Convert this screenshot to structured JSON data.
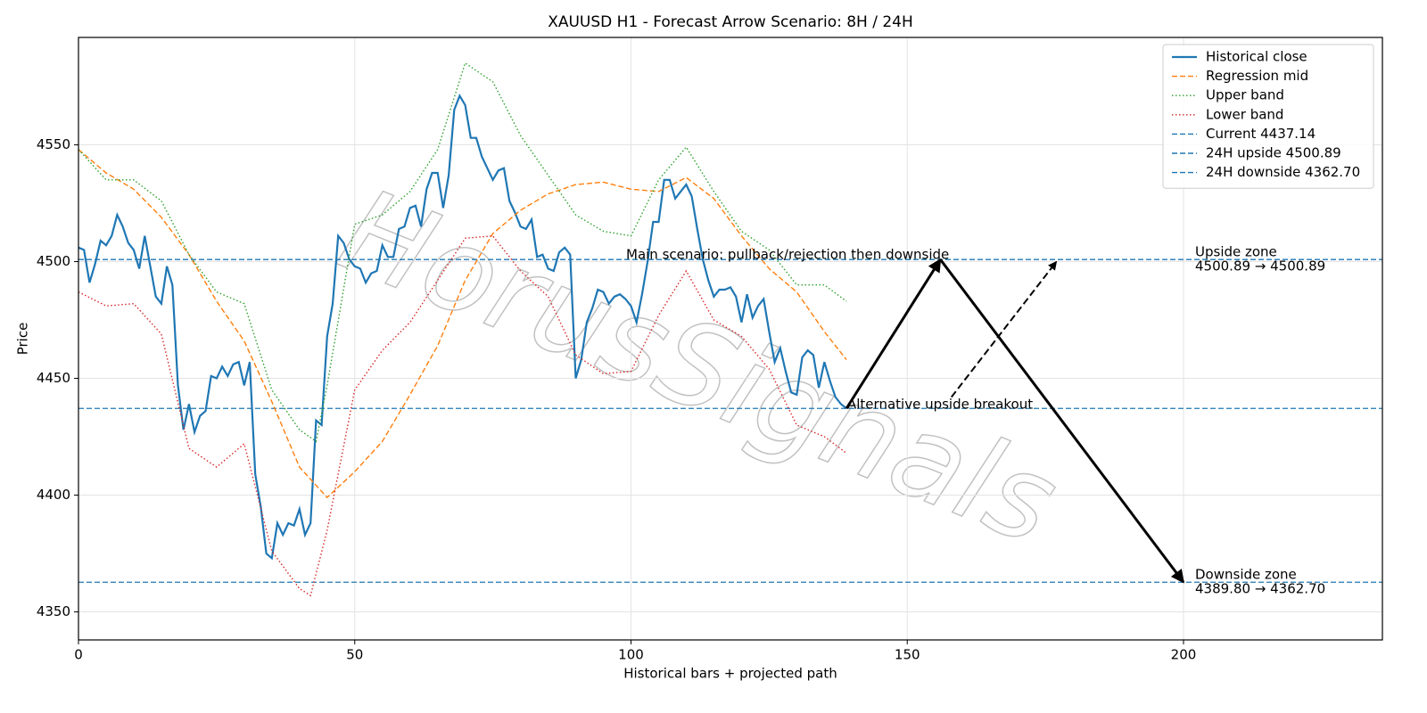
{
  "chart_data": {
    "type": "line",
    "title": "XAUUSD H1 - Forecast Arrow Scenario: 8H / 24H",
    "xlabel": "Historical bars + projected path",
    "ylabel": "Price",
    "watermark": "HorusSignals",
    "xlim": [
      0,
      236
    ],
    "ylim": [
      4338,
      4596
    ],
    "xticks": [
      0,
      50,
      100,
      150,
      200
    ],
    "yticks": [
      4350,
      4400,
      4450,
      4500,
      4550
    ],
    "grid": true,
    "legend": "upper right",
    "series": [
      {
        "name": "Historical close",
        "color": "#1f77b4",
        "style": "solid",
        "x": [
          0,
          1,
          2,
          3,
          4,
          5,
          6,
          7,
          8,
          9,
          10,
          11,
          12,
          13,
          14,
          15,
          16,
          17,
          18,
          19,
          20,
          21,
          22,
          23,
          24,
          25,
          26,
          27,
          28,
          29,
          30,
          31,
          32,
          33,
          34,
          35,
          36,
          37,
          38,
          39,
          40,
          41,
          42,
          43,
          44,
          45,
          46,
          47,
          48,
          49,
          50,
          51,
          52,
          53,
          54,
          55,
          56,
          57,
          58,
          59,
          60,
          61,
          62,
          63,
          64,
          65,
          66,
          67,
          68,
          69,
          70,
          71,
          72,
          73,
          74,
          75,
          76,
          77,
          78,
          79,
          80,
          81,
          82,
          83,
          84,
          85,
          86,
          87,
          88,
          89,
          90,
          91,
          92,
          93,
          94,
          95,
          96,
          97,
          98,
          99,
          100,
          101,
          102,
          103,
          104,
          105,
          106,
          107,
          108,
          109,
          110,
          111,
          112,
          113,
          114,
          115,
          116,
          117,
          118,
          119,
          120,
          121,
          122,
          123,
          124,
          125,
          126,
          127,
          128,
          129,
          130,
          131,
          132,
          133,
          134,
          135,
          136,
          137,
          138,
          139
        ],
        "values": [
          4506,
          4505,
          4491,
          4499,
          4509,
          4507,
          4511,
          4520,
          4515,
          4508,
          4505,
          4497,
          4511,
          4498,
          4485,
          4482,
          4498,
          4490,
          4447,
          4428,
          4439,
          4427,
          4434,
          4436,
          4451,
          4450,
          4455,
          4451,
          4456,
          4457,
          4447,
          4457,
          4409,
          4395,
          4375,
          4373,
          4388,
          4383,
          4388,
          4387,
          4394,
          4383,
          4388,
          4432,
          4430,
          4468,
          4482,
          4511,
          4508,
          4501,
          4498,
          4497,
          4491,
          4495,
          4496,
          4507,
          4502,
          4502,
          4514,
          4515,
          4523,
          4524,
          4515,
          4531,
          4538,
          4538,
          4523,
          4537,
          4565,
          4571,
          4567,
          4553,
          4553,
          4545,
          4540,
          4535,
          4539,
          4540,
          4526,
          4521,
          4515,
          4514,
          4518,
          4502,
          4503,
          4497,
          4496,
          4504,
          4506,
          4503,
          4450,
          4458,
          4474,
          4480,
          4488,
          4487,
          4482,
          4485,
          4486,
          4484,
          4481,
          4474,
          4486,
          4500,
          4517,
          4517,
          4535,
          4535,
          4527,
          4530,
          4533,
          4528,
          4514,
          4501,
          4492,
          4485,
          4488,
          4488,
          4489,
          4485,
          4474,
          4486,
          4476,
          4481,
          4484,
          4470,
          4457,
          4463,
          4453,
          4444,
          4443,
          4459,
          4462,
          4460,
          4446,
          4457,
          4449,
          4442,
          4439,
          4437.14
        ]
      },
      {
        "name": "Regression mid",
        "color": "#ff7f0e",
        "style": "dashed",
        "x": [
          0,
          5,
          10,
          15,
          20,
          25,
          30,
          35,
          40,
          45,
          50,
          55,
          60,
          65,
          70,
          75,
          80,
          85,
          90,
          95,
          100,
          105,
          110,
          115,
          120,
          125,
          130,
          135,
          139
        ],
        "values": [
          4548,
          4538,
          4531,
          4519,
          4503,
          4483,
          4466,
          4440,
          4412,
          4399,
          4410,
          4423,
          4443,
          4464,
          4492,
          4512,
          4522,
          4529,
          4533,
          4534,
          4531,
          4530,
          4536,
          4527,
          4511,
          4497,
          4487,
          4470,
          4458
        ]
      },
      {
        "name": "Upper band",
        "color": "#2ca02c",
        "style": "dotted",
        "x": [
          0,
          5,
          10,
          15,
          20,
          25,
          30,
          35,
          40,
          43,
          45,
          50,
          55,
          60,
          65,
          70,
          75,
          80,
          85,
          90,
          95,
          100,
          105,
          110,
          115,
          120,
          125,
          130,
          135,
          139
        ],
        "values": [
          4548,
          4535,
          4535,
          4526,
          4503,
          4487,
          4482,
          4445,
          4428,
          4423,
          4447,
          4516,
          4520,
          4530,
          4548,
          4585,
          4577,
          4554,
          4537,
          4520,
          4513,
          4511,
          4535,
          4549,
          4530,
          4513,
          4505,
          4490,
          4490,
          4483
        ]
      },
      {
        "name": "Lower band",
        "color": "#d62728",
        "style": "dotted",
        "x": [
          0,
          5,
          10,
          15,
          20,
          25,
          30,
          35,
          40,
          42,
          45,
          50,
          55,
          60,
          65,
          70,
          75,
          80,
          85,
          90,
          95,
          100,
          105,
          110,
          115,
          120,
          125,
          130,
          135,
          139
        ],
        "values": [
          4487,
          4481,
          4482,
          4469,
          4420,
          4412,
          4422,
          4376,
          4360,
          4357,
          4385,
          4445,
          4462,
          4474,
          4492,
          4510,
          4511,
          4496,
          4485,
          4460,
          4452,
          4453,
          4477,
          4496,
          4475,
          4468,
          4454,
          4430,
          4425,
          4418
        ]
      }
    ],
    "hlines": [
      {
        "name": "Current 4437.14",
        "value": 4437.14,
        "color": "#1f77b4"
      },
      {
        "name": "24H upside 4500.89",
        "value": 4500.89,
        "color": "#1f77b4"
      },
      {
        "name": "24H downside 4362.70",
        "value": 4362.7,
        "color": "#1f77b4"
      }
    ],
    "arrows": [
      {
        "from": [
          139,
          4437.14
        ],
        "to": [
          156,
          4500.89
        ],
        "style": "solid"
      },
      {
        "from": [
          156,
          4500.89
        ],
        "to": [
          200,
          4362.7
        ],
        "style": "solid"
      },
      {
        "from": [
          158,
          4442
        ],
        "to": [
          177,
          4500
        ],
        "style": "dashed"
      }
    ],
    "annotations": [
      "Main scenario: pullback/rejection then downside",
      "Alternative upside breakout"
    ],
    "zones": [
      {
        "title": "Upside zone",
        "range": "4500.89 → 4500.89"
      },
      {
        "title": "Downside zone",
        "range": "4389.80 → 4362.70"
      }
    ]
  }
}
